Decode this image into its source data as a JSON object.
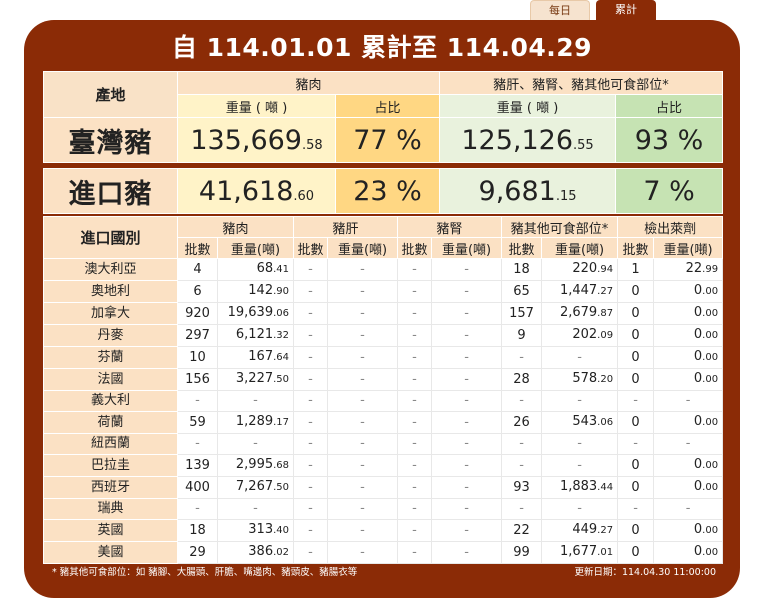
{
  "tabs": {
    "daily": "每日",
    "total": "累計"
  },
  "title": "自 114.01.01 累計至 114.04.29",
  "summary": {
    "origin_label": "產地",
    "pork_label": "豬肉",
    "offal_label": "豬肝、豬腎、豬其他可食部位*",
    "weight_label": "重量 ( 噸 )",
    "share_label": "占比",
    "taiwan": {
      "label": "臺灣豬",
      "pork_weight_int": "135,669",
      "pork_weight_dec": ".58",
      "pork_share": "77 %",
      "offal_weight_int": "125,126",
      "offal_weight_dec": ".55",
      "offal_share": "93 %"
    },
    "imported": {
      "label": "進口豬",
      "pork_weight_int": "41,618",
      "pork_weight_dec": ".60",
      "pork_share": "23 %",
      "offal_weight_int": "9,681",
      "offal_weight_dec": ".15",
      "offal_share": "7 %"
    }
  },
  "detail": {
    "country_header": "進口國別",
    "groups": [
      "豬肉",
      "豬肝",
      "豬腎",
      "豬其他可食部位*",
      "檢出萊劑"
    ],
    "batch_label": "批數",
    "weight_label": "重量(噸)",
    "rows": [
      {
        "name": "澳大利亞",
        "c": [
          "4",
          "68.41",
          "-",
          "-",
          "-",
          "-",
          "18",
          "220.94",
          "1",
          "22.99"
        ]
      },
      {
        "name": "奧地利",
        "c": [
          "6",
          "142.90",
          "-",
          "-",
          "-",
          "-",
          "65",
          "1,447.27",
          "0",
          "0.00"
        ]
      },
      {
        "name": "加拿大",
        "c": [
          "920",
          "19,639.06",
          "-",
          "-",
          "-",
          "-",
          "157",
          "2,679.87",
          "0",
          "0.00"
        ]
      },
      {
        "name": "丹麥",
        "c": [
          "297",
          "6,121.32",
          "-",
          "-",
          "-",
          "-",
          "9",
          "202.09",
          "0",
          "0.00"
        ]
      },
      {
        "name": "芬蘭",
        "c": [
          "10",
          "167.64",
          "-",
          "-",
          "-",
          "-",
          "-",
          "-",
          "0",
          "0.00"
        ]
      },
      {
        "name": "法國",
        "c": [
          "156",
          "3,227.50",
          "-",
          "-",
          "-",
          "-",
          "28",
          "578.20",
          "0",
          "0.00"
        ]
      },
      {
        "name": "義大利",
        "c": [
          "-",
          "-",
          "-",
          "-",
          "-",
          "-",
          "-",
          "-",
          "-",
          "-"
        ]
      },
      {
        "name": "荷蘭",
        "c": [
          "59",
          "1,289.17",
          "-",
          "-",
          "-",
          "-",
          "26",
          "543.06",
          "0",
          "0.00"
        ]
      },
      {
        "name": "紐西蘭",
        "c": [
          "-",
          "-",
          "-",
          "-",
          "-",
          "-",
          "-",
          "-",
          "-",
          "-"
        ]
      },
      {
        "name": "巴拉圭",
        "c": [
          "139",
          "2,995.68",
          "-",
          "-",
          "-",
          "-",
          "-",
          "-",
          "0",
          "0.00"
        ]
      },
      {
        "name": "西班牙",
        "c": [
          "400",
          "7,267.50",
          "-",
          "-",
          "-",
          "-",
          "93",
          "1,883.44",
          "0",
          "0.00"
        ]
      },
      {
        "name": "瑞典",
        "c": [
          "-",
          "-",
          "-",
          "-",
          "-",
          "-",
          "-",
          "-",
          "-",
          "-"
        ]
      },
      {
        "name": "英國",
        "c": [
          "18",
          "313.40",
          "-",
          "-",
          "-",
          "-",
          "22",
          "449.27",
          "0",
          "0.00"
        ]
      },
      {
        "name": "美國",
        "c": [
          "29",
          "386.02",
          "-",
          "-",
          "-",
          "-",
          "99",
          "1,677.01",
          "0",
          "0.00"
        ]
      }
    ]
  },
  "footer": {
    "note": "* 豬其他可食部位：如 豬腳、大腸頭、肝膽、嘴邊肉、豬頭皮、豬腸衣等",
    "updated": "更新日期：114.04.30 11:00:00"
  },
  "colors": {
    "accent": "#8b2b06",
    "header_peach": "#fbe1c4",
    "pork_weight": "#fff3c8",
    "pork_share": "#ffd783",
    "offal_weight": "#e9f2dd",
    "offal_share": "#c6e3b3"
  }
}
